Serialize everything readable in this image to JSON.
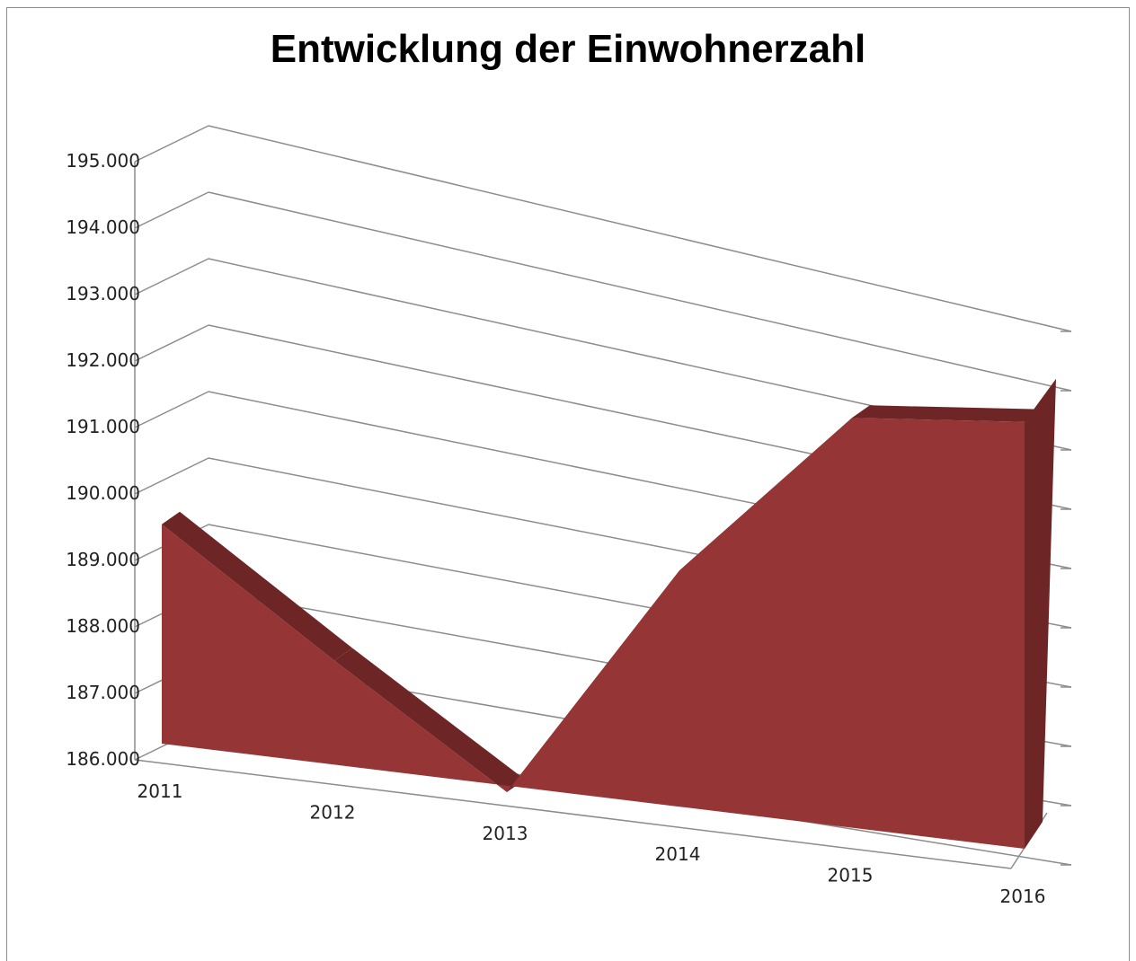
{
  "chart_data": {
    "type": "area",
    "title": "Entwicklung der Einwohnerzahl",
    "categories": [
      "2011",
      "2012",
      "2013",
      "2014",
      "2015",
      "2016"
    ],
    "series": [
      {
        "values": [
          189300,
          187600,
          185900,
          189800,
          192750,
          193200
        ]
      }
    ],
    "ylim": [
      186000,
      195000
    ],
    "y_ticks": [
      186000,
      187000,
      188000,
      189000,
      190000,
      191000,
      192000,
      193000,
      194000,
      195000
    ],
    "y_tick_labels": [
      "186.000",
      "187.000",
      "188.000",
      "189.000",
      "190.000",
      "191.000",
      "192.000",
      "193.000",
      "194.000",
      "195.000"
    ],
    "grid": true,
    "legend": "none",
    "projection": "3d-perspective",
    "colors": {
      "area_front": "#953536",
      "area_top": "#6e2526",
      "grid": "#8c8c8c",
      "frame": "#8c8c8c"
    }
  }
}
